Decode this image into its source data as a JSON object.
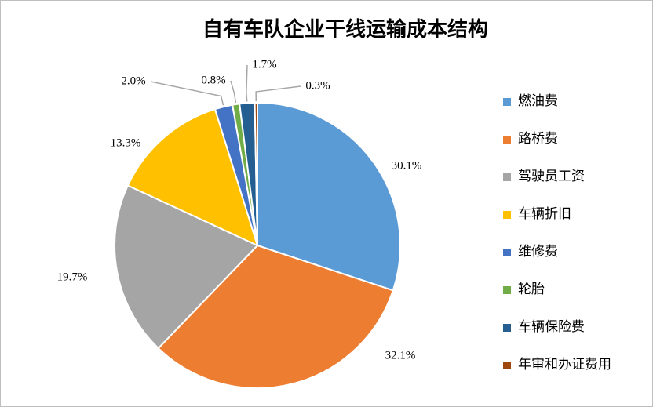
{
  "chart_data": {
    "type": "pie",
    "title": "自有车队企业干线运输成本结构",
    "categories": [
      "燃油费",
      "路桥费",
      "驾驶员工资",
      "车辆折旧",
      "维修费",
      "轮胎",
      "车辆保险费",
      "年审和办证费用"
    ],
    "values": [
      30.1,
      32.1,
      19.7,
      13.3,
      2.0,
      0.8,
      1.7,
      0.3
    ],
    "value_labels": [
      "30.1%",
      "32.1%",
      "19.7%",
      "13.3%",
      "2.0%",
      "0.8%",
      "1.7%",
      "0.3%"
    ],
    "colors": [
      "#5b9bd5",
      "#ed7d31",
      "#a5a5a5",
      "#ffc000",
      "#4472c4",
      "#70ad47",
      "#255e91",
      "#9e480e"
    ],
    "legend": "right"
  }
}
